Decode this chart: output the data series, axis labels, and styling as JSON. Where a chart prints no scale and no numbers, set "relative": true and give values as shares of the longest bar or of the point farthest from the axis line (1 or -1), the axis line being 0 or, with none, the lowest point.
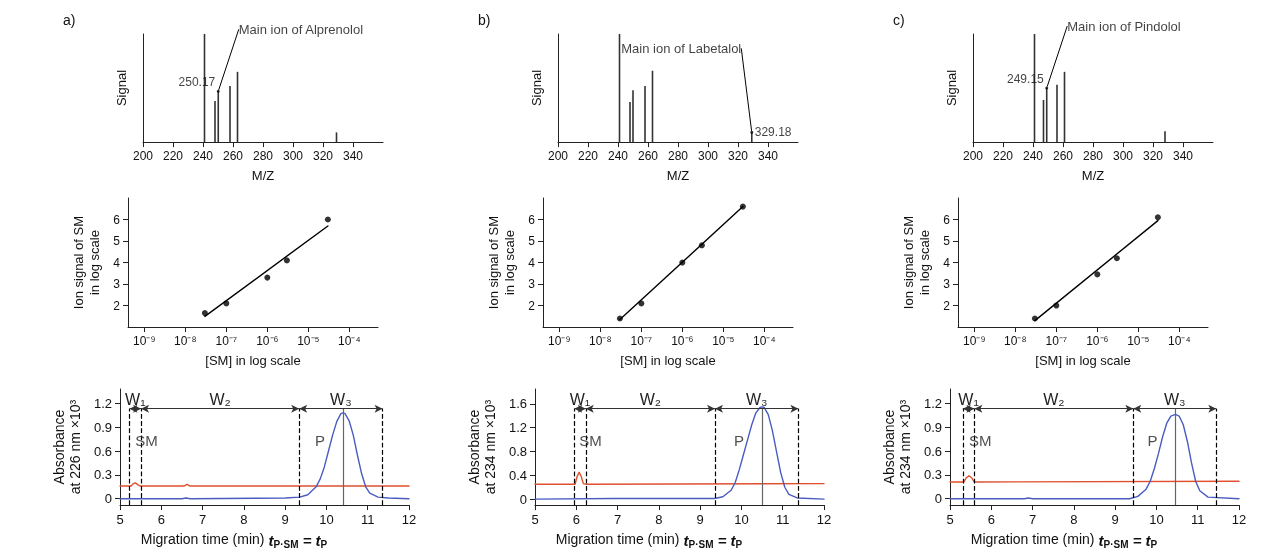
{
  "chart_data": [
    {
      "type": "bar",
      "title": "a)",
      "xlabel": "M/Z",
      "ylabel": "Signal",
      "relative": true,
      "color": "#333333",
      "x": [
        241,
        248,
        250.17,
        258,
        263,
        329
      ],
      "values": [
        1,
        0.38,
        0.47,
        0.52,
        0.65,
        0.09
      ],
      "xlim": [
        200,
        360
      ],
      "xticks": [
        200,
        220,
        240,
        260,
        280,
        300,
        320,
        340
      ],
      "annotations": [
        {
          "text": "Main ion of Alprenolol",
          "x": 250.17,
          "y": 0.47
        },
        {
          "text": "250.17",
          "x": 250.17,
          "y": 0.47
        }
      ]
    },
    {
      "type": "bar",
      "title": "b)",
      "xlabel": "M/Z",
      "ylabel": "Signal",
      "relative": true,
      "color": "#333333",
      "x": [
        241,
        248,
        250,
        258,
        263,
        329.18
      ],
      "values": [
        1,
        0.37,
        0.48,
        0.52,
        0.66,
        0.09
      ],
      "xlim": [
        200,
        360
      ],
      "xticks": [
        200,
        220,
        240,
        260,
        280,
        300,
        320,
        340
      ],
      "annotations": [
        {
          "text": "Main ion of Labetalol",
          "x": 329.18,
          "y": 0.09
        },
        {
          "text": "329.18",
          "x": 329.18,
          "y": 0.09
        }
      ]
    },
    {
      "type": "bar",
      "title": "c)",
      "xlabel": "M/Z",
      "ylabel": "Signal",
      "relative": true,
      "color": "#333333",
      "x": [
        241,
        247,
        249.15,
        256,
        261,
        328
      ],
      "values": [
        1,
        0.39,
        0.5,
        0.53,
        0.65,
        0.1
      ],
      "xlim": [
        200,
        360
      ],
      "xticks": [
        200,
        220,
        240,
        260,
        280,
        300,
        320,
        340
      ],
      "annotations": [
        {
          "text": "Main ion of Pindolol",
          "x": 249.15,
          "y": 0.5
        },
        {
          "text": "249.15",
          "x": 249.15,
          "y": 0.5
        }
      ]
    },
    {
      "type": "scatter",
      "xlabel": "[SM] in log scale",
      "ylabel": "Ion signal of SM\nin log scale",
      "log": "x",
      "xlim": [
        4e-10,
        0.0005
      ],
      "ylim": [
        1,
        7
      ],
      "xticks": [
        {
          "value": 1e-09,
          "label": "10⁻⁹"
        },
        {
          "value": 1e-08,
          "label": "10⁻⁸"
        },
        {
          "value": 1e-07,
          "label": "10⁻⁷"
        },
        {
          "value": 1e-06,
          "label": "10⁻⁶"
        },
        {
          "value": 1e-05,
          "label": "10⁻⁵"
        },
        {
          "value": 0.0001,
          "label": "10⁻⁴"
        }
      ],
      "yticks": [
        2,
        3,
        4,
        5,
        6
      ],
      "series": [
        {
          "type": "scatter",
          "color": "#000000",
          "x": [
            3e-08,
            1e-07,
            1e-06,
            3e-06,
            3e-05
          ],
          "values": [
            1.65,
            2.1,
            3.3,
            4.1,
            6.0
          ]
        },
        {
          "type": "line",
          "color": "#000000",
          "x": [
            3e-08,
            3e-05
          ],
          "values": [
            1.5,
            5.7
          ]
        }
      ]
    },
    {
      "type": "scatter",
      "xlabel": "[SM] in log scale",
      "ylabel": "Ion signal of SM\nin log scale",
      "log": "x",
      "xlim": [
        4e-10,
        0.0005
      ],
      "ylim": [
        1,
        7
      ],
      "xticks": [
        {
          "value": 1e-09,
          "label": "10⁻⁹"
        },
        {
          "value": 1e-08,
          "label": "10⁻⁸"
        },
        {
          "value": 1e-07,
          "label": "10⁻⁷"
        },
        {
          "value": 1e-06,
          "label": "10⁻⁶"
        },
        {
          "value": 1e-05,
          "label": "10⁻⁵"
        },
        {
          "value": 0.0001,
          "label": "10⁻⁴"
        }
      ],
      "yticks": [
        2,
        3,
        4,
        5,
        6
      ],
      "series": [
        {
          "type": "scatter",
          "color": "#000000",
          "x": [
            3e-08,
            1e-07,
            1e-06,
            3e-06,
            3e-05
          ],
          "values": [
            1.4,
            2.1,
            4.0,
            4.8,
            6.6
          ]
        },
        {
          "type": "line",
          "color": "#000000",
          "x": [
            3e-08,
            3e-05
          ],
          "values": [
            1.35,
            6.6
          ]
        }
      ]
    },
    {
      "type": "scatter",
      "xlabel": "[SM] in log scale",
      "ylabel": "Ion signal of SM\nin log scale",
      "log": "x",
      "xlim": [
        4e-10,
        0.0005
      ],
      "ylim": [
        1,
        7
      ],
      "xticks": [
        {
          "value": 1e-09,
          "label": "10⁻⁹"
        },
        {
          "value": 1e-08,
          "label": "10⁻⁸"
        },
        {
          "value": 1e-07,
          "label": "10⁻⁷"
        },
        {
          "value": 1e-06,
          "label": "10⁻⁶"
        },
        {
          "value": 1e-05,
          "label": "10⁻⁵"
        },
        {
          "value": 0.0001,
          "label": "10⁻⁴"
        }
      ],
      "yticks": [
        2,
        3,
        4,
        5,
        6
      ],
      "series": [
        {
          "type": "scatter",
          "color": "#000000",
          "x": [
            3e-08,
            1e-07,
            1e-06,
            3e-06,
            3e-05
          ],
          "values": [
            1.4,
            2.0,
            3.45,
            4.2,
            6.1
          ]
        },
        {
          "type": "line",
          "color": "#000000",
          "x": [
            3e-08,
            3e-05
          ],
          "values": [
            1.3,
            5.95
          ]
        }
      ]
    },
    {
      "type": "line",
      "xlabel": "Migration time (min)",
      "ylabel": "Absorbance\nat 226 nm ×10³",
      "xlim": [
        5,
        12
      ],
      "ylim": [
        -0.08,
        1.38
      ],
      "xticks": [
        5,
        6,
        7,
        8,
        9,
        10,
        11,
        12
      ],
      "yticks": [
        0,
        0.3,
        0.6,
        0.9,
        1.2
      ],
      "series": [
        {
          "color": "#e0502e",
          "x": [
            5,
            5.27,
            5.32,
            5.37,
            5.42,
            5.48,
            6.55,
            6.62,
            6.7,
            12
          ],
          "values": [
            0.16,
            0.16,
            0.19,
            0.2,
            0.18,
            0.16,
            0.16,
            0.18,
            0.16,
            0.16
          ]
        },
        {
          "color": "#4a5cc0",
          "x": [
            5,
            6.5,
            6.6,
            6.7,
            9.0,
            9.35,
            9.55,
            9.75,
            9.85,
            9.95,
            10.05,
            10.15,
            10.25,
            10.35,
            10.4,
            10.45,
            10.55,
            10.65,
            10.75,
            10.85,
            10.95,
            11.05,
            11.25,
            11.5,
            12
          ],
          "values": [
            0,
            0,
            0.01,
            0,
            0.01,
            0.02,
            0.05,
            0.15,
            0.25,
            0.4,
            0.6,
            0.8,
            0.97,
            1.07,
            1.08,
            1.07,
            0.98,
            0.8,
            0.55,
            0.32,
            0.15,
            0.07,
            0.02,
            0.01,
            0
          ]
        }
      ],
      "ref_lines": [
        {
          "axis": "x",
          "value": 5.23,
          "line_style": "dashed",
          "color": "#000000"
        },
        {
          "axis": "x",
          "value": 5.51,
          "line_style": "dashed",
          "color": "#000000"
        },
        {
          "axis": "x",
          "value": 9.34,
          "line_style": "dashed",
          "color": "#000000"
        },
        {
          "axis": "x",
          "value": 11.36,
          "line_style": "dashed",
          "color": "#000000"
        },
        {
          "axis": "x",
          "value": 10.4,
          "line_style": "solid",
          "color": "#666666"
        }
      ],
      "annotations": [
        "W₁",
        "W₂",
        "W₃",
        {
          "text": "SM",
          "x": 5.37,
          "y": 0.2
        },
        {
          "text": "P",
          "x": 10.4,
          "y": 1.08
        },
        "t$_{P·SM}$ = t$_{P}$"
      ]
    },
    {
      "type": "line",
      "xlabel": "Migration time (min)",
      "ylabel": "Absorbance\nat 234 nm ×10³",
      "xlim": [
        5,
        12
      ],
      "ylim": [
        -0.1,
        1.85
      ],
      "xticks": [
        5,
        6,
        7,
        8,
        9,
        10,
        11,
        12
      ],
      "yticks": [
        0,
        0.4,
        0.8,
        1.2,
        1.6
      ],
      "series": [
        {
          "color": "#e0502e",
          "x": [
            5,
            5.97,
            6.02,
            6.07,
            6.12,
            6.17,
            6.25,
            12
          ],
          "values": [
            0.25,
            0.25,
            0.38,
            0.45,
            0.38,
            0.26,
            0.25,
            0.26
          ]
        },
        {
          "color": "#4a5cc0",
          "x": [
            5,
            6.9,
            9.35,
            9.55,
            9.75,
            9.85,
            9.95,
            10.05,
            10.15,
            10.25,
            10.35,
            10.45,
            10.5,
            10.55,
            10.65,
            10.75,
            10.85,
            10.95,
            11.05,
            11.15,
            11.35,
            12
          ],
          "values": [
            0,
            0.01,
            0.01,
            0.04,
            0.15,
            0.28,
            0.5,
            0.75,
            1.0,
            1.25,
            1.45,
            1.54,
            1.55,
            1.54,
            1.42,
            1.15,
            0.8,
            0.45,
            0.2,
            0.08,
            0.02,
            0
          ]
        }
      ],
      "ref_lines": [
        {
          "axis": "x",
          "value": 5.95,
          "line_style": "dashed",
          "color": "#000000"
        },
        {
          "axis": "x",
          "value": 6.23,
          "line_style": "dashed",
          "color": "#000000"
        },
        {
          "axis": "x",
          "value": 9.36,
          "line_style": "dashed",
          "color": "#000000"
        },
        {
          "axis": "x",
          "value": 11.38,
          "line_style": "dashed",
          "color": "#000000"
        },
        {
          "axis": "x",
          "value": 10.5,
          "line_style": "solid",
          "color": "#666666"
        }
      ],
      "annotations": [
        "W₁",
        "W₂",
        "W₃",
        {
          "text": "SM",
          "x": 6.07,
          "y": 0.45
        },
        {
          "text": "P",
          "x": 10.5,
          "y": 1.55
        },
        "t$_{P·SM}$ = t$_{P}$"
      ]
    },
    {
      "type": "line",
      "xlabel": "Migration time (min)",
      "ylabel": "Absorbance\nat 234 nm ×10³",
      "xlim": [
        5,
        12
      ],
      "ylim": [
        -0.08,
        1.38
      ],
      "xticks": [
        5,
        6,
        7,
        8,
        9,
        10,
        11,
        12
      ],
      "yticks": [
        0,
        0.3,
        0.6,
        0.9,
        1.2
      ],
      "series": [
        {
          "color": "#e0502e",
          "x": [
            5,
            5.33,
            5.39,
            5.46,
            5.53,
            5.59,
            12
          ],
          "values": [
            0.21,
            0.21,
            0.26,
            0.29,
            0.26,
            0.21,
            0.22
          ]
        },
        {
          "color": "#4a5cc0",
          "x": [
            5,
            6.8,
            6.9,
            7.0,
            9.35,
            9.55,
            9.75,
            9.85,
            9.95,
            10.05,
            10.15,
            10.25,
            10.35,
            10.46,
            10.55,
            10.65,
            10.75,
            10.85,
            10.95,
            11.05,
            11.25,
            12
          ],
          "values": [
            0,
            0,
            0.01,
            0,
            0,
            0.03,
            0.12,
            0.22,
            0.38,
            0.57,
            0.78,
            0.95,
            1.04,
            1.06,
            1.04,
            0.93,
            0.72,
            0.45,
            0.22,
            0.1,
            0.02,
            0
          ]
        }
      ],
      "ref_lines": [
        {
          "axis": "x",
          "value": 5.31,
          "line_style": "dashed",
          "color": "#000000"
        },
        {
          "axis": "x",
          "value": 5.59,
          "line_style": "dashed",
          "color": "#000000"
        },
        {
          "axis": "x",
          "value": 9.44,
          "line_style": "dashed",
          "color": "#000000"
        },
        {
          "axis": "x",
          "value": 11.45,
          "line_style": "dashed",
          "color": "#000000"
        },
        {
          "axis": "x",
          "value": 10.46,
          "line_style": "solid",
          "color": "#666666"
        }
      ],
      "annotations": [
        "W₁",
        "W₂",
        "W₃",
        {
          "text": "SM",
          "x": 5.46,
          "y": 0.29
        },
        {
          "text": "P",
          "x": 10.46,
          "y": 1.06
        },
        "t$_{P·SM}$ = t$_{P}$"
      ]
    }
  ]
}
